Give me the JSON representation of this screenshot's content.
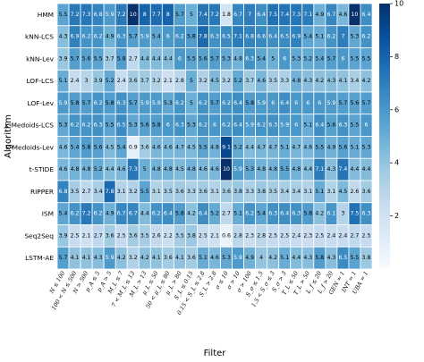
{
  "chart_data": {
    "type": "heatmap",
    "xlabel": "Filter",
    "ylabel": "Algorithm",
    "rows": [
      "HMM",
      "kNN-LCS",
      "kNN-Lev",
      "LOF-LCS",
      "LOF-Lev",
      "k-Medoids-LCS",
      "k-Medoids-Lev",
      "t-STIDE",
      "RIPPER",
      "ISM",
      "Seq2Seq",
      "LSTM-AE"
    ],
    "columns": [
      "N ≤ 100",
      "100 < N ≤ 500",
      "N > 500",
      "p_A ≤ 5",
      "p_A > 5",
      "M_L ≤ 7",
      "7 < M_L ≤ 13",
      "M_L > 13",
      "μ_L ≤ 50",
      "50 < μ_L ≤ 80",
      "μ_L > 80",
      "S_L ≤ 0.15",
      "0.15 < S_L ≤ 2.8",
      "S_L > 2.8",
      "σ ≤ 10",
      "σ > 10",
      "σ > 100",
      "S_σ ≤ 1.5",
      "1.5 < S_σ ≤ 3",
      "S_σ > 3",
      "T_L ≤ 50",
      "T_L > 50",
      "L_f ≤ 20",
      "L_f > 20",
      "GEN = 1",
      "INT = 1",
      "UBA = 1"
    ],
    "values": [
      [
        5.5,
        7.2,
        7.3,
        6.8,
        5.9,
        7.2,
        10,
        8,
        7.7,
        8,
        5.7,
        5,
        7.4,
        7.2,
        1.8,
        6.7,
        7,
        6.4,
        7.5,
        7.4,
        7.3,
        7.1,
        4.9,
        6.7,
        4.6,
        10,
        6.4
      ],
      [
        4.3,
        6.9,
        6.2,
        6.2,
        4.9,
        6.3,
        5.7,
        5.9,
        5.4,
        6,
        6.2,
        5.8,
        7.8,
        6.3,
        6.5,
        7.1,
        6.8,
        6.6,
        6.4,
        6.5,
        6.9,
        5.4,
        5.1,
        6.2,
        7,
        5.3,
        6.2
      ],
      [
        3.9,
        5.7,
        5.6,
        5.5,
        3.7,
        5.8,
        2.7,
        4.4,
        4.4,
        4.4,
        6,
        5.5,
        5.6,
        5.7,
        5.3,
        4.8,
        6.3,
        5.4,
        5,
        6,
        5.3,
        5.2,
        5.4,
        5.7,
        6,
        5.5,
        5.5
      ],
      [
        5.1,
        2.4,
        3,
        3.9,
        5.2,
        2.4,
        3.6,
        3.7,
        3.2,
        2.1,
        2.8,
        5,
        3.2,
        4.5,
        3.2,
        5.2,
        3.7,
        4.6,
        3.5,
        3.3,
        4.8,
        4.3,
        4.2,
        4.3,
        4.1,
        3.4,
        4.2
      ],
      [
        5.9,
        5.8,
        5.7,
        6.2,
        5.8,
        6.3,
        5.7,
        5.9,
        5.9,
        5.3,
        6.2,
        5,
        6.2,
        5.7,
        6.2,
        6.4,
        5.8,
        5.9,
        6,
        6.4,
        6,
        6,
        6,
        5.9,
        5.7,
        5.6,
        5.7
      ],
      [
        5.3,
        6.2,
        6.2,
        6.3,
        5.5,
        6.5,
        5.3,
        5.6,
        5.8,
        6,
        6.3,
        5.3,
        6.2,
        6,
        6.2,
        6.4,
        5.9,
        6.2,
        6.3,
        5.9,
        6,
        5.1,
        6.4,
        5.6,
        6.3,
        5.5,
        6
      ],
      [
        4.6,
        5.4,
        5.8,
        5.6,
        4.5,
        5.4,
        0.9,
        3.6,
        4.6,
        4.6,
        4.7,
        4.5,
        5.5,
        4.8,
        9.1,
        5.2,
        4.4,
        4.7,
        4.7,
        5.1,
        4.7,
        4.6,
        5.5,
        4.9,
        5.6,
        5.1,
        5.3
      ],
      [
        4.6,
        4.8,
        4.8,
        5.2,
        4.4,
        4.6,
        7.3,
        5,
        4.8,
        4.8,
        4.5,
        4.8,
        4.6,
        4.6,
        10,
        5.9,
        5.3,
        4.8,
        4.8,
        5.5,
        4.8,
        4.4,
        7.1,
        4.3,
        7.4,
        4.4,
        4.4
      ],
      [
        6.8,
        3.5,
        2.7,
        3.4,
        7.8,
        3.1,
        3.2,
        5.5,
        3.1,
        3.5,
        3.6,
        3.3,
        3.6,
        3.1,
        3.6,
        3.8,
        3.3,
        3.8,
        3.5,
        3.4,
        3.4,
        3.1,
        5.1,
        3.1,
        4.5,
        2.6,
        3.6
      ],
      [
        5.4,
        6.2,
        7.2,
        6.2,
        4.9,
        6.7,
        6.7,
        4.4,
        6.2,
        6.4,
        5.8,
        4.2,
        6.4,
        5.2,
        2.7,
        5.1,
        6.2,
        5.4,
        6.3,
        6.4,
        6.3,
        5.8,
        4.2,
        6.1,
        3,
        7.5,
        6.3
      ],
      [
        3.9,
        2.5,
        2.1,
        2.7,
        3.6,
        2.5,
        3.6,
        3.5,
        2.6,
        2.2,
        3.5,
        3.8,
        2.5,
        2.1,
        0.6,
        2.8,
        2.3,
        2.8,
        2.5,
        2.5,
        2.4,
        2.3,
        2.5,
        2.4,
        2.4,
        2.7,
        2.5
      ],
      [
        5.7,
        4.1,
        4.1,
        4.3,
        5.9,
        4.2,
        3.2,
        4.2,
        4.1,
        3.6,
        4.1,
        3.6,
        5.1,
        4.6,
        5.3,
        5.9,
        4.9,
        4,
        4.2,
        5.1,
        4.4,
        4.3,
        5.8,
        4.3,
        6.5,
        5.5,
        3.8
      ]
    ],
    "colormap": "Blues",
    "vmin": 0,
    "vmax": 10,
    "colorbar_ticks": [
      2,
      4,
      6,
      8,
      10
    ]
  }
}
